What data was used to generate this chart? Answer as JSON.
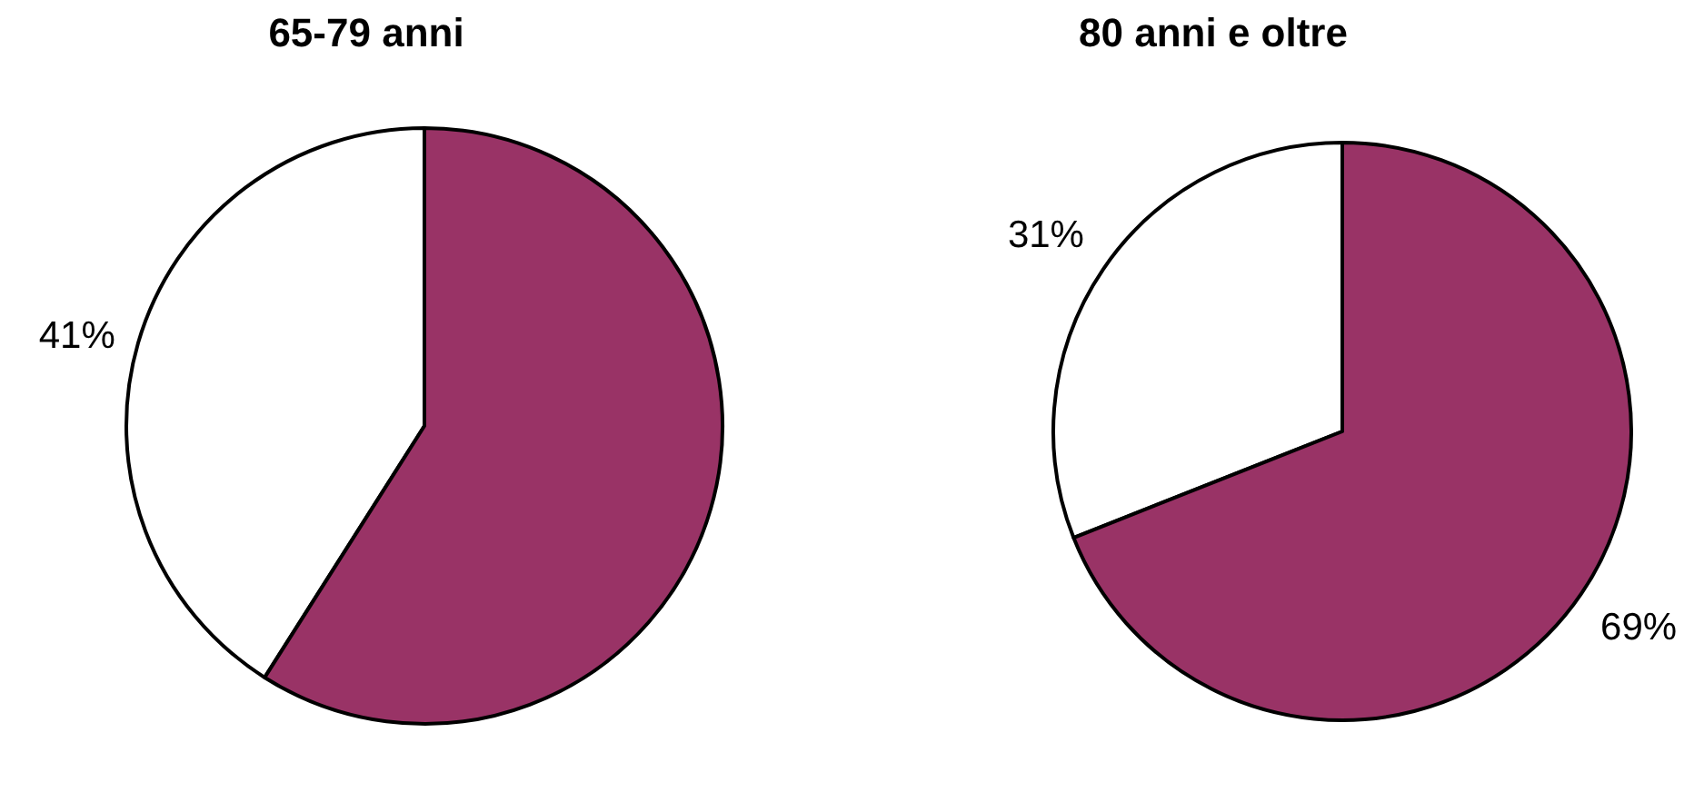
{
  "chart_data": [
    {
      "type": "pie",
      "title": "65-79 anni",
      "categories": [
        null,
        null
      ],
      "values": [
        41,
        59
      ],
      "colors": [
        "#ffffff",
        "#993366"
      ],
      "value_labels": [
        "41%",
        null
      ]
    },
    {
      "type": "pie",
      "title": "80 anni e oltre",
      "categories": [
        null,
        null
      ],
      "values": [
        31,
        69
      ],
      "colors": [
        "#ffffff",
        "#993366"
      ],
      "value_labels": [
        "31%",
        "69%"
      ]
    }
  ]
}
